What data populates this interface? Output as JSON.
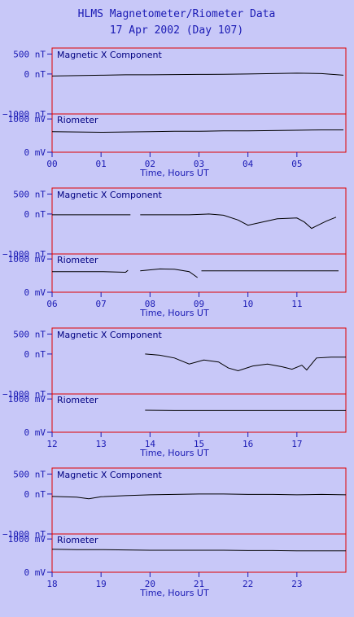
{
  "title": "HLMS Magnetometer/Riometer Data",
  "subtitle": "17 Apr 2002 (Day 107)",
  "colors": {
    "background": "#c8c8f8",
    "frame": "#e00000",
    "text": "#1a1ab4",
    "trace": "#000000"
  },
  "chart_data": [
    {
      "type": "line",
      "xlabel": "Time, Hours UT",
      "xlim": [
        0,
        6
      ],
      "x_ticks": [
        "00",
        "01",
        "02",
        "03",
        "04",
        "05"
      ],
      "mag": {
        "label": "Magnetic X Component",
        "ylim": [
          -1000,
          650
        ],
        "y_ticks": [
          "500 nT",
          "0 nT",
          "-1000 nT"
        ],
        "x": [
          0.0,
          0.5,
          1.0,
          1.5,
          2.0,
          2.5,
          3.0,
          3.5,
          4.0,
          4.5,
          5.0,
          5.5,
          5.95
        ],
        "y": [
          -50,
          -40,
          -30,
          -20,
          -20,
          -15,
          -10,
          -5,
          0,
          10,
          20,
          10,
          -30
        ]
      },
      "rio": {
        "label": "Riometer",
        "ylim": [
          0,
          1150
        ],
        "y_ticks": [
          "1000 mV",
          "0 mV"
        ],
        "x": [
          0.0,
          0.5,
          1.0,
          1.5,
          2.0,
          2.5,
          3.0,
          3.5,
          4.0,
          4.5,
          5.0,
          5.5,
          5.95
        ],
        "y": [
          620,
          610,
          600,
          610,
          620,
          630,
          630,
          640,
          640,
          650,
          660,
          670,
          670
        ]
      }
    },
    {
      "type": "line",
      "xlabel": "Time, Hours UT",
      "xlim": [
        6,
        12
      ],
      "x_ticks": [
        "06",
        "07",
        "08",
        "09",
        "10",
        "11"
      ],
      "mag": {
        "label": "Magnetic X Component",
        "ylim": [
          -1000,
          650
        ],
        "y_ticks": [
          "500 nT",
          "0 nT",
          "-1000 nT"
        ],
        "x": [
          6.0,
          6.5,
          7.0,
          7.6,
          null,
          7.8,
          8.2,
          8.5,
          8.8,
          9.2,
          9.5,
          9.8,
          10.0,
          10.3,
          10.6,
          11.0,
          11.15,
          11.3,
          11.4,
          11.6,
          11.8
        ],
        "y": [
          -20,
          -20,
          -20,
          -20,
          null,
          -20,
          -20,
          -20,
          -20,
          0,
          -30,
          -150,
          -280,
          -200,
          -120,
          -100,
          -200,
          -360,
          -300,
          -180,
          -80
        ]
      },
      "rio": {
        "label": "Riometer",
        "ylim": [
          0,
          1150
        ],
        "y_ticks": [
          "1000 mV",
          "0 mV"
        ],
        "x": [
          6.0,
          6.5,
          7.0,
          7.5,
          7.55,
          null,
          7.8,
          8.2,
          8.5,
          8.8,
          8.97,
          null,
          9.05,
          9.5,
          10.0,
          10.5,
          11.0,
          11.5,
          11.85
        ],
        "y": [
          620,
          620,
          620,
          600,
          660,
          null,
          640,
          700,
          690,
          620,
          440,
          null,
          640,
          640,
          640,
          640,
          640,
          640,
          640
        ]
      }
    },
    {
      "type": "line",
      "xlabel": "Time, Hours UT",
      "xlim": [
        12,
        18
      ],
      "x_ticks": [
        "12",
        "13",
        "14",
        "15",
        "16",
        "17"
      ],
      "mag": {
        "label": "Magnetic X Component",
        "ylim": [
          -1000,
          650
        ],
        "y_ticks": [
          "500 nT",
          "0 nT",
          "-1000 nT"
        ],
        "x": [
          13.9,
          14.2,
          14.5,
          14.8,
          15.1,
          15.4,
          15.6,
          15.8,
          16.1,
          16.4,
          16.7,
          16.9,
          17.1,
          17.2,
          17.4,
          17.7,
          18.0
        ],
        "y": [
          0,
          -30,
          -100,
          -250,
          -150,
          -200,
          -350,
          -420,
          -300,
          -250,
          -320,
          -380,
          -280,
          -400,
          -100,
          -80,
          -80
        ]
      },
      "rio": {
        "label": "Riometer",
        "ylim": [
          0,
          1150
        ],
        "y_ticks": [
          "1000 mV",
          "0 mV"
        ],
        "x": [
          13.9,
          14.5,
          15.0,
          15.5,
          16.0,
          16.5,
          17.0,
          17.5,
          18.0
        ],
        "y": [
          660,
          650,
          650,
          650,
          650,
          650,
          650,
          650,
          650
        ]
      }
    },
    {
      "type": "line",
      "xlabel": "Time, Hours UT",
      "xlim": [
        18,
        24
      ],
      "x_ticks": [
        "18",
        "19",
        "20",
        "21",
        "22",
        "23"
      ],
      "mag": {
        "label": "Magnetic X Component",
        "ylim": [
          -1000,
          650
        ],
        "y_ticks": [
          "500 nT",
          "0 nT",
          "-1000 nT"
        ],
        "x": [
          18.0,
          18.5,
          18.75,
          19.0,
          19.5,
          20.0,
          20.5,
          21.0,
          21.5,
          22.0,
          22.5,
          23.0,
          23.5,
          24.0
        ],
        "y": [
          -60,
          -80,
          -120,
          -70,
          -40,
          -20,
          -10,
          0,
          0,
          -10,
          -10,
          -20,
          -10,
          -20
        ]
      },
      "rio": {
        "label": "Riometer",
        "ylim": [
          0,
          1150
        ],
        "y_ticks": [
          "1000 mV",
          "0 mV"
        ],
        "x": [
          18.0,
          18.5,
          19.0,
          19.5,
          20.0,
          20.5,
          21.0,
          21.5,
          22.0,
          22.5,
          23.0,
          23.5,
          24.0
        ],
        "y": [
          690,
          680,
          680,
          670,
          660,
          660,
          660,
          660,
          650,
          650,
          640,
          640,
          640
        ]
      }
    }
  ]
}
